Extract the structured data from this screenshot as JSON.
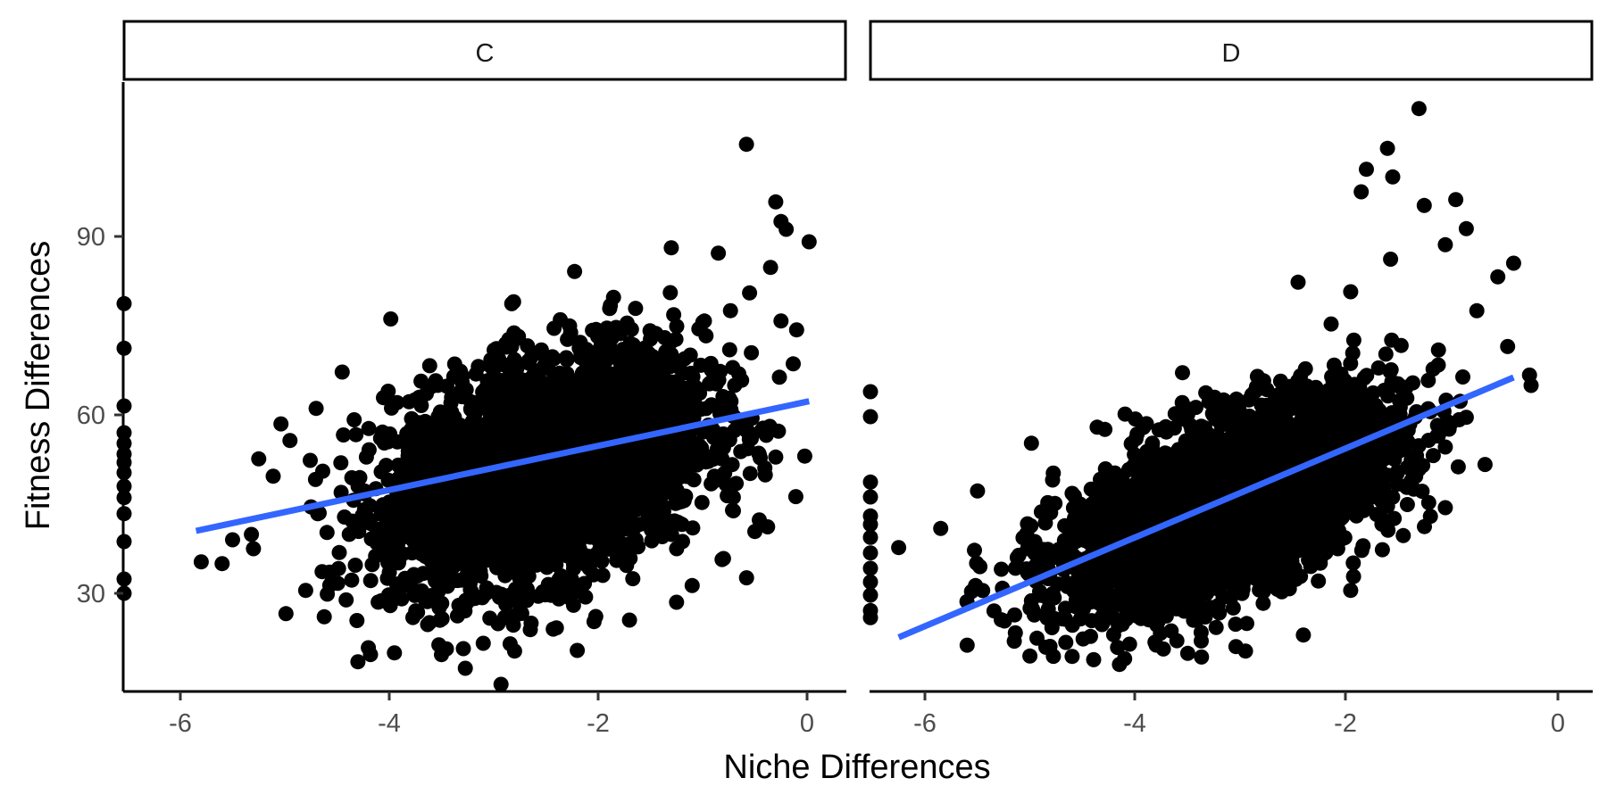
{
  "chart_data": {
    "type": "scatter",
    "xlabel": "Niche Differences",
    "ylabel": "Fitness Differences",
    "xlim": [
      -6.55,
      0.35
    ],
    "ylim": [
      13.5,
      117
    ],
    "x_ticks": [
      -6,
      -4,
      -2,
      0
    ],
    "x_tick_labels": [
      "-6",
      "-4",
      "-2",
      "0"
    ],
    "y_ticks": [
      30,
      60,
      90
    ],
    "y_tick_labels": [
      "30",
      "60",
      "90"
    ],
    "grid": false,
    "legend": "none",
    "trend_color": "#3366ff",
    "point_color": "#000000",
    "panels": [
      {
        "label": "C",
        "trend": {
          "x": [
            -5.85,
            0.02
          ],
          "y": [
            40.5,
            62.3
          ]
        },
        "cloud": {
          "x_center": -2.5,
          "y_center": 51,
          "x_sd": 0.75,
          "y_sd": 9.5,
          "corr": 0.35,
          "n": 3500
        },
        "points": [
          {
            "x": -0.58,
            "y": 105.5
          },
          {
            "x": -0.3,
            "y": 95.8
          },
          {
            "x": -0.25,
            "y": 92.5
          },
          {
            "x": -0.2,
            "y": 91.2
          },
          {
            "x": 0.02,
            "y": 89.1
          },
          {
            "x": -0.1,
            "y": 74.3
          },
          {
            "x": -0.25,
            "y": 75.8
          },
          {
            "x": -0.85,
            "y": 87.2
          },
          {
            "x": -1.3,
            "y": 88.1
          },
          {
            "x": -4.3,
            "y": 18.5
          },
          {
            "x": -3.95,
            "y": 20.0
          },
          {
            "x": -3.5,
            "y": 19.7
          },
          {
            "x": -2.8,
            "y": 20.3
          },
          {
            "x": -2.2,
            "y": 20.4
          },
          {
            "x": -5.8,
            "y": 35.3
          },
          {
            "x": -5.6,
            "y": 35.0
          },
          {
            "x": -5.5,
            "y": 39.0
          },
          {
            "x": -5.25,
            "y": 52.6
          },
          {
            "x": -4.95,
            "y": 55.7
          },
          {
            "x": -4.7,
            "y": 61.1
          },
          {
            "x": -4.45,
            "y": 67.2
          },
          {
            "x": -3.1,
            "y": 21.6
          },
          {
            "x": -2.4,
            "y": 24.2
          },
          {
            "x": -1.7,
            "y": 25.5
          },
          {
            "x": -1.25,
            "y": 28.5
          },
          {
            "x": -1.1,
            "y": 31.3
          },
          {
            "x": -0.5,
            "y": 40.4
          },
          {
            "x": -0.3,
            "y": 52.9
          },
          {
            "x": -0.4,
            "y": 49.9
          },
          {
            "x": -4.8,
            "y": 30.5
          },
          {
            "x": -5.3,
            "y": 37.5
          },
          {
            "x": -0.55,
            "y": 80.5
          },
          {
            "x": -0.35,
            "y": 84.8
          },
          {
            "x": -6.55,
            "y": 78.7
          },
          {
            "x": -6.55,
            "y": 71.2
          },
          {
            "x": -6.55,
            "y": 61.5
          },
          {
            "x": -6.55,
            "y": 57.0
          },
          {
            "x": -6.55,
            "y": 55.2
          },
          {
            "x": -6.55,
            "y": 53.4
          },
          {
            "x": -6.55,
            "y": 52.0
          },
          {
            "x": -6.55,
            "y": 50.3
          },
          {
            "x": -6.55,
            "y": 48.0
          },
          {
            "x": -6.55,
            "y": 46.1
          },
          {
            "x": -6.55,
            "y": 43.4
          },
          {
            "x": -6.55,
            "y": 38.7
          },
          {
            "x": -6.55,
            "y": 32.4
          },
          {
            "x": -6.55,
            "y": 30.0
          }
        ]
      },
      {
        "label": "D",
        "trend": {
          "x": [
            -6.25,
            -0.4
          ],
          "y": [
            22.6,
            66.3
          ]
        },
        "cloud": {
          "x_center": -3.1,
          "y_center": 45,
          "x_sd": 0.8,
          "y_sd": 9,
          "corr": 0.6,
          "n": 3200
        },
        "points": [
          {
            "x": -1.3,
            "y": 111.5
          },
          {
            "x": -1.6,
            "y": 104.8
          },
          {
            "x": -1.8,
            "y": 101.3
          },
          {
            "x": -1.55,
            "y": 100.0
          },
          {
            "x": -1.85,
            "y": 97.5
          },
          {
            "x": -0.95,
            "y": 96.2
          },
          {
            "x": -1.25,
            "y": 95.2
          },
          {
            "x": -0.85,
            "y": 91.3
          },
          {
            "x": -1.05,
            "y": 88.6
          },
          {
            "x": -0.55,
            "y": 83.2
          },
          {
            "x": -0.4,
            "y": 85.5
          },
          {
            "x": -0.75,
            "y": 77.5
          },
          {
            "x": -0.85,
            "y": 59.6
          },
          {
            "x": -1.05,
            "y": 54.6
          },
          {
            "x": -1.05,
            "y": 44.4
          },
          {
            "x": -4.1,
            "y": 19.0
          },
          {
            "x": -3.5,
            "y": 19.9
          },
          {
            "x": -2.95,
            "y": 20.3
          },
          {
            "x": -4.6,
            "y": 19.4
          },
          {
            "x": -6.25,
            "y": 37.7
          },
          {
            "x": -5.85,
            "y": 40.9
          },
          {
            "x": -5.6,
            "y": 28.6
          },
          {
            "x": -2.45,
            "y": 82.3
          },
          {
            "x": -1.95,
            "y": 80.7
          },
          {
            "x": -2.4,
            "y": 23.0
          },
          {
            "x": -1.95,
            "y": 30.5
          },
          {
            "x": -1.45,
            "y": 39.7
          },
          {
            "x": -3.8,
            "y": 21.3
          },
          {
            "x": -5.0,
            "y": 27.5
          },
          {
            "x": -3.55,
            "y": 67.1
          },
          {
            "x": -1.35,
            "y": 47.5
          },
          {
            "x": -5.5,
            "y": 47.2
          },
          {
            "x": -6.55,
            "y": 63.9
          },
          {
            "x": -6.55,
            "y": 59.7
          },
          {
            "x": -6.55,
            "y": 48.7
          },
          {
            "x": -6.55,
            "y": 46.2
          },
          {
            "x": -6.55,
            "y": 43.0
          },
          {
            "x": -6.55,
            "y": 41.6
          },
          {
            "x": -6.55,
            "y": 39.4
          },
          {
            "x": -6.55,
            "y": 36.8
          },
          {
            "x": -6.55,
            "y": 34.2
          },
          {
            "x": -6.55,
            "y": 31.9
          },
          {
            "x": -6.55,
            "y": 29.7
          },
          {
            "x": -6.55,
            "y": 27.1
          },
          {
            "x": -6.55,
            "y": 25.9
          }
        ]
      }
    ]
  }
}
